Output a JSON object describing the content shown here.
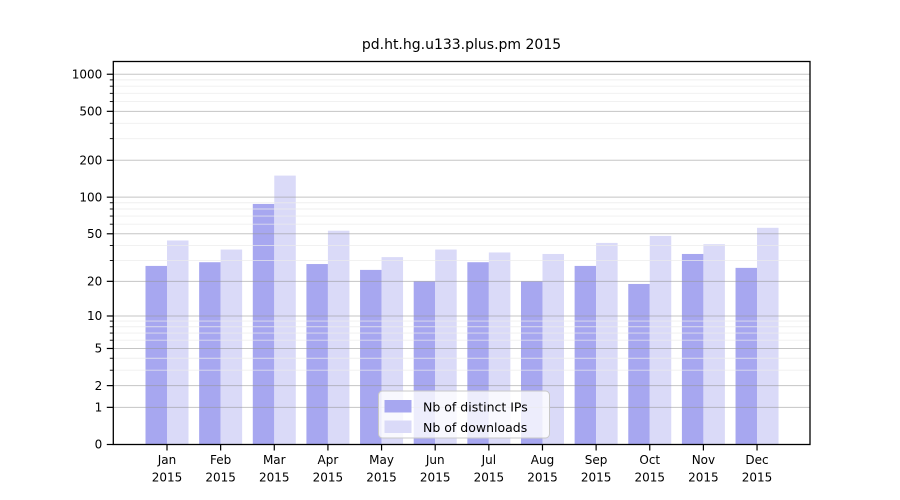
{
  "title": "pd.ht.hg.u133.plus.pm 2015",
  "legend": {
    "items": [
      {
        "label": "Nb of distinct IPs",
        "color": "#a7a7f0"
      },
      {
        "label": "Nb of downloads",
        "color": "#dadaf8"
      }
    ],
    "position": "lower center"
  },
  "colors": {
    "ips_bar": "#a7a7f0",
    "downloads_bar": "#dadaf8",
    "major_grid": "#c6c6c6",
    "minor_grid": "#ededed",
    "axis": "#000000",
    "plot_background": "#ffffff"
  },
  "y_axis": {
    "tick_labels": [
      "1000",
      "500",
      "200",
      "100",
      "50",
      "20",
      "10",
      "5",
      "2",
      "1",
      "0"
    ]
  },
  "x_axis": {
    "tick_line1": [
      "Jan",
      "Feb",
      "Mar",
      "Apr",
      "May",
      "Jun",
      "Jul",
      "Aug",
      "Sep",
      "Oct",
      "Nov",
      "Dec"
    ],
    "tick_line2": "2015"
  },
  "chart_data": {
    "type": "bar",
    "title": "pd.ht.hg.u133.plus.pm 2015",
    "categories": [
      "Jan 2015",
      "Feb 2015",
      "Mar 2015",
      "Apr 2015",
      "May 2015",
      "Jun 2015",
      "Jul 2015",
      "Aug 2015",
      "Sep 2015",
      "Oct 2015",
      "Nov 2015",
      "Dec 2015"
    ],
    "series": [
      {
        "name": "Nb of distinct IPs",
        "color": "#a7a7f0",
        "values": [
          27,
          29,
          88,
          28,
          25,
          20,
          29,
          20,
          27,
          19,
          34,
          26
        ]
      },
      {
        "name": "Nb of downloads",
        "color": "#dadaf8",
        "values": [
          44,
          37,
          150,
          53,
          32,
          37,
          35,
          34,
          42,
          48,
          41,
          56
        ]
      }
    ],
    "xlabel": "",
    "ylabel": "",
    "yscale": "log1p",
    "ylim": [
      0,
      1280
    ],
    "y_major_ticks": [
      0,
      1,
      2,
      5,
      10,
      20,
      50,
      100,
      200,
      500,
      1000
    ],
    "y_minor_ticks": [
      3,
      4,
      6,
      7,
      8,
      9,
      30,
      40,
      60,
      70,
      80,
      90,
      300,
      400,
      600,
      700,
      800,
      900
    ],
    "grid": "on",
    "legend_position": "lower center"
  }
}
